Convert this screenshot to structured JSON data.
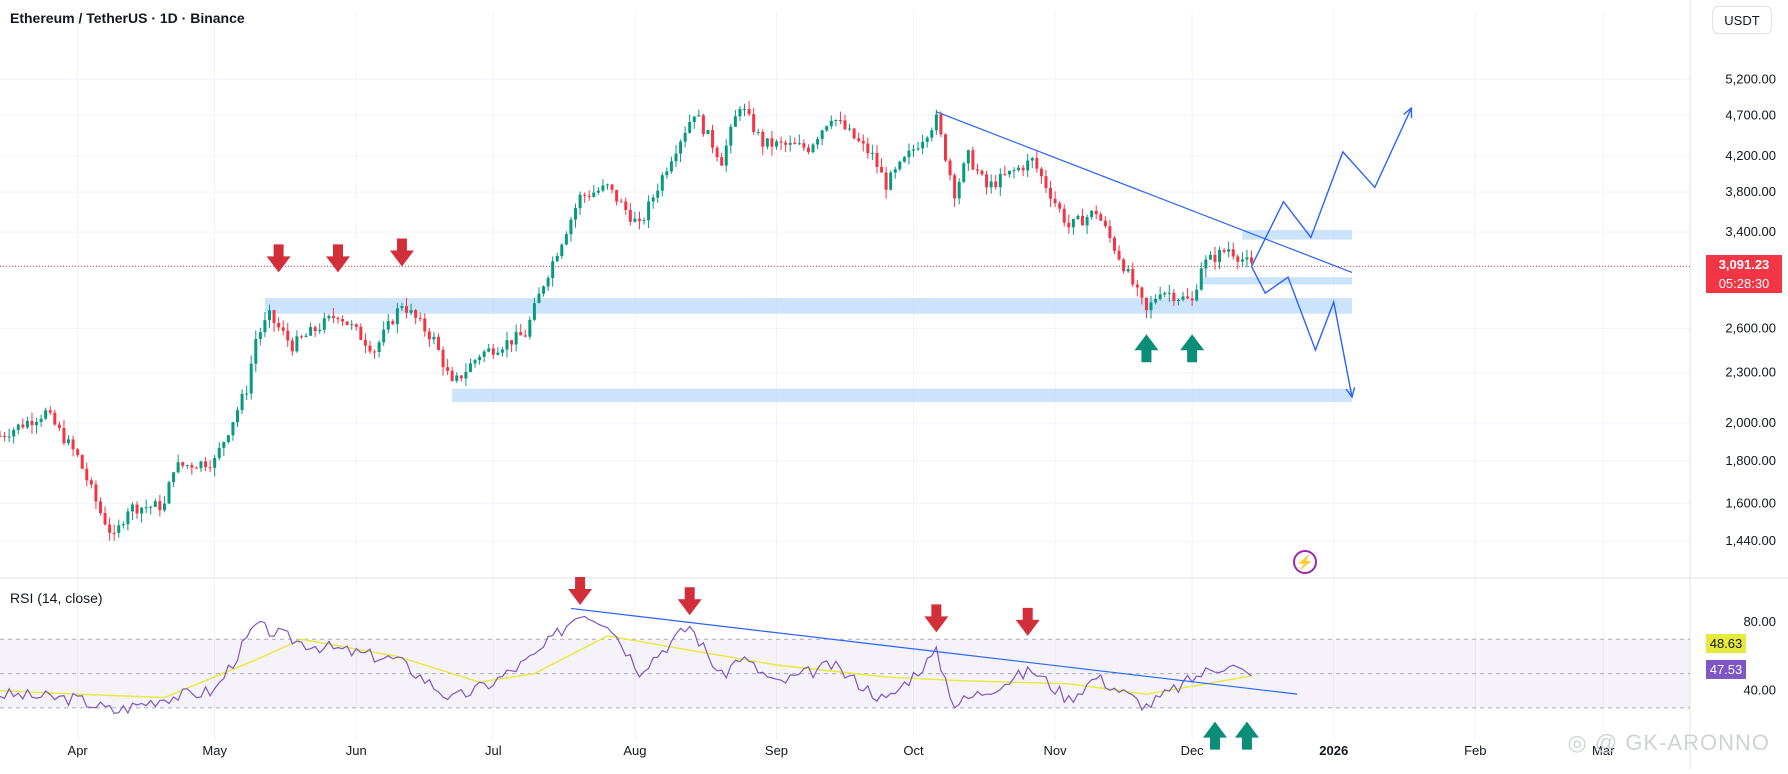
{
  "header": {
    "title": "Ethereum / TetherUS · 1D · Binance",
    "currency_button": "USDT"
  },
  "rsi_panel": {
    "title": "RSI (14, close)",
    "value_rsi": "47.53",
    "value_ma": "48.63",
    "rsi_color": "#7e57c2",
    "ma_color": "#e6ea3a"
  },
  "current": {
    "price": "3,091.23",
    "countdown": "05:28:30",
    "color": "#f23645"
  },
  "watermark": "GK-ARONNO",
  "colors": {
    "up": "#089981",
    "down": "#f23645",
    "zone": "#bbd9fb",
    "trend": "#2962ff",
    "arrow_down": "#d32f3a",
    "arrow_up": "#0b8e78"
  },
  "chart_data": [
    {
      "type": "candlestick",
      "title": "Ethereum / TetherUS · 1D · Binance",
      "scale": "log",
      "ylim": [
        1300,
        5800
      ],
      "xlim": [
        "2025-03-15",
        "2026-03-20"
      ],
      "price_ticks": [
        "5,200.00",
        "4,700.00",
        "4,200.00",
        "3,800.00",
        "3,400.00",
        "2,600.00",
        "2,300.00",
        "2,000.00",
        "1,800.00",
        "1,600.00",
        "1,440.00"
      ],
      "x_ticks": [
        {
          "date": "2025-04-01",
          "label": "Apr"
        },
        {
          "date": "2025-05-01",
          "label": "May"
        },
        {
          "date": "2025-06-01",
          "label": "Jun"
        },
        {
          "date": "2025-07-01",
          "label": "Jul"
        },
        {
          "date": "2025-08-01",
          "label": "Aug"
        },
        {
          "date": "2025-09-01",
          "label": "Sep"
        },
        {
          "date": "2025-10-01",
          "label": "Oct"
        },
        {
          "date": "2025-11-01",
          "label": "Nov"
        },
        {
          "date": "2025-12-01",
          "label": "Dec"
        },
        {
          "date": "2026-01-01",
          "label": "2026"
        },
        {
          "date": "2026-02-01",
          "label": "Feb"
        },
        {
          "date": "2026-03-01",
          "label": "Mar"
        }
      ],
      "close_path": [
        [
          "2025-03-15",
          1930
        ],
        [
          "2025-03-25",
          2060
        ],
        [
          "2025-04-01",
          1820
        ],
        [
          "2025-04-06",
          1560
        ],
        [
          "2025-04-09",
          1450
        ],
        [
          "2025-04-12",
          1580
        ],
        [
          "2025-04-20",
          1590
        ],
        [
          "2025-04-22",
          1770
        ],
        [
          "2025-05-01",
          1800
        ],
        [
          "2025-05-08",
          2200
        ],
        [
          "2025-05-10",
          2530
        ],
        [
          "2025-05-13",
          2690
        ],
        [
          "2025-05-18",
          2480
        ],
        [
          "2025-05-28",
          2710
        ],
        [
          "2025-06-05",
          2450
        ],
        [
          "2025-06-11",
          2790
        ],
        [
          "2025-06-18",
          2520
        ],
        [
          "2025-06-22",
          2220
        ],
        [
          "2025-06-28",
          2420
        ],
        [
          "2025-07-08",
          2560
        ],
        [
          "2025-07-12",
          2950
        ],
        [
          "2025-07-20",
          3750
        ],
        [
          "2025-07-26",
          3850
        ],
        [
          "2025-08-02",
          3450
        ],
        [
          "2025-08-09",
          4200
        ],
        [
          "2025-08-14",
          4750
        ],
        [
          "2025-08-20",
          4150
        ],
        [
          "2025-08-24",
          4850
        ],
        [
          "2025-08-29",
          4350
        ],
        [
          "2025-09-08",
          4300
        ],
        [
          "2025-09-13",
          4700
        ],
        [
          "2025-09-22",
          4200
        ],
        [
          "2025-09-25",
          3880
        ],
        [
          "2025-10-06",
          4650
        ],
        [
          "2025-10-10",
          3800
        ],
        [
          "2025-10-13",
          4200
        ],
        [
          "2025-10-17",
          3850
        ],
        [
          "2025-10-27",
          4150
        ],
        [
          "2025-11-04",
          3450
        ],
        [
          "2025-11-10",
          3600
        ],
        [
          "2025-11-16",
          3100
        ],
        [
          "2025-11-21",
          2720
        ],
        [
          "2025-11-24",
          2900
        ],
        [
          "2025-12-01",
          2800
        ],
        [
          "2025-12-03",
          3100
        ],
        [
          "2025-12-09",
          3250
        ],
        [
          "2025-12-14",
          3091.23
        ]
      ],
      "projection_up": [
        [
          "2025-12-14",
          3091
        ],
        [
          "2025-12-21",
          3700
        ],
        [
          "2025-12-27",
          3350
        ],
        [
          "2026-01-03",
          4250
        ],
        [
          "2026-01-10",
          3850
        ],
        [
          "2026-01-18",
          4800
        ]
      ],
      "projection_down": [
        [
          "2025-12-14",
          3091
        ],
        [
          "2025-12-17",
          2870
        ],
        [
          "2025-12-22",
          3000
        ],
        [
          "2025-12-28",
          2450
        ],
        [
          "2026-01-01",
          2800
        ],
        [
          "2026-01-05",
          2150
        ]
      ],
      "zones": [
        {
          "start": "2025-05-12",
          "end": "2026-01-05",
          "low": 2710,
          "high": 2830
        },
        {
          "start": "2025-06-22",
          "end": "2026-01-05",
          "low": 2120,
          "high": 2200
        },
        {
          "start": "2025-12-03",
          "end": "2026-01-05",
          "low": 2940,
          "high": 3000
        },
        {
          "start": "2025-12-12",
          "end": "2026-01-05",
          "low": 3330,
          "high": 3420
        }
      ],
      "trendline": {
        "start": [
          "2025-10-06",
          4750
        ],
        "end": [
          "2026-01-05",
          3040
        ]
      },
      "arrows_down": [
        [
          "2025-05-15",
          3040
        ],
        [
          "2025-05-28",
          3040
        ],
        [
          "2025-06-11",
          3090
        ]
      ],
      "arrows_up": [
        [
          "2025-11-21",
          2560
        ],
        [
          "2025-12-01",
          2560
        ]
      ]
    },
    {
      "type": "line",
      "title": "RSI (14, close)",
      "ylim": [
        20,
        90
      ],
      "y_ticks": [
        "80.00",
        "40.00"
      ],
      "band": [
        30,
        70
      ],
      "series": [
        {
          "values": [
            [
              "2025-03-15",
              38
            ],
            [
              "2025-04-01",
              35
            ],
            [
              "2025-04-09",
              28
            ],
            [
              "2025-04-20",
              36
            ],
            [
              "2025-05-01",
              40
            ],
            [
              "2025-05-10",
              78
            ],
            [
              "2025-05-20",
              68
            ],
            [
              "2025-06-01",
              62
            ],
            [
              "2025-06-10",
              58
            ],
            [
              "2025-06-22",
              35
            ],
            [
              "2025-07-01",
              45
            ],
            [
              "2025-07-10",
              60
            ],
            [
              "2025-07-20",
              86
            ],
            [
              "2025-07-26",
              80
            ],
            [
              "2025-08-02",
              52
            ],
            [
              "2025-08-13",
              78
            ],
            [
              "2025-08-20",
              48
            ],
            [
              "2025-08-24",
              60
            ],
            [
              "2025-09-01",
              44
            ],
            [
              "2025-09-13",
              55
            ],
            [
              "2025-09-25",
              34
            ],
            [
              "2025-10-06",
              62
            ],
            [
              "2025-10-10",
              32
            ],
            [
              "2025-10-27",
              52
            ],
            [
              "2025-11-04",
              35
            ],
            [
              "2025-11-10",
              48
            ],
            [
              "2025-11-21",
              31
            ],
            [
              "2025-12-03",
              50
            ],
            [
              "2025-12-09",
              56
            ],
            [
              "2025-12-14",
              47.53
            ]
          ]
        },
        {
          "values": [
            [
              "2025-03-15",
              40
            ],
            [
              "2025-04-01",
              38
            ],
            [
              "2025-04-20",
              36
            ],
            [
              "2025-05-10",
              58
            ],
            [
              "2025-05-20",
              70
            ],
            [
              "2025-06-10",
              60
            ],
            [
              "2025-06-28",
              45
            ],
            [
              "2025-07-10",
              50
            ],
            [
              "2025-07-26",
              72
            ],
            [
              "2025-08-10",
              65
            ],
            [
              "2025-09-01",
              55
            ],
            [
              "2025-09-25",
              48
            ],
            [
              "2025-10-10",
              46
            ],
            [
              "2025-11-04",
              44
            ],
            [
              "2025-11-21",
              38
            ],
            [
              "2025-12-14",
              48.63
            ]
          ]
        }
      ],
      "trendline": {
        "start": [
          "2025-07-18",
          88
        ],
        "end": [
          "2025-12-24",
          38
        ]
      },
      "arrows_down": [
        [
          "2025-07-20",
          90
        ],
        [
          "2025-08-13",
          84
        ],
        [
          "2025-10-06",
          74
        ],
        [
          "2025-10-26",
          72
        ]
      ],
      "arrows_up": [
        [
          "2025-12-06",
          22
        ],
        [
          "2025-12-13",
          22
        ]
      ]
    }
  ]
}
